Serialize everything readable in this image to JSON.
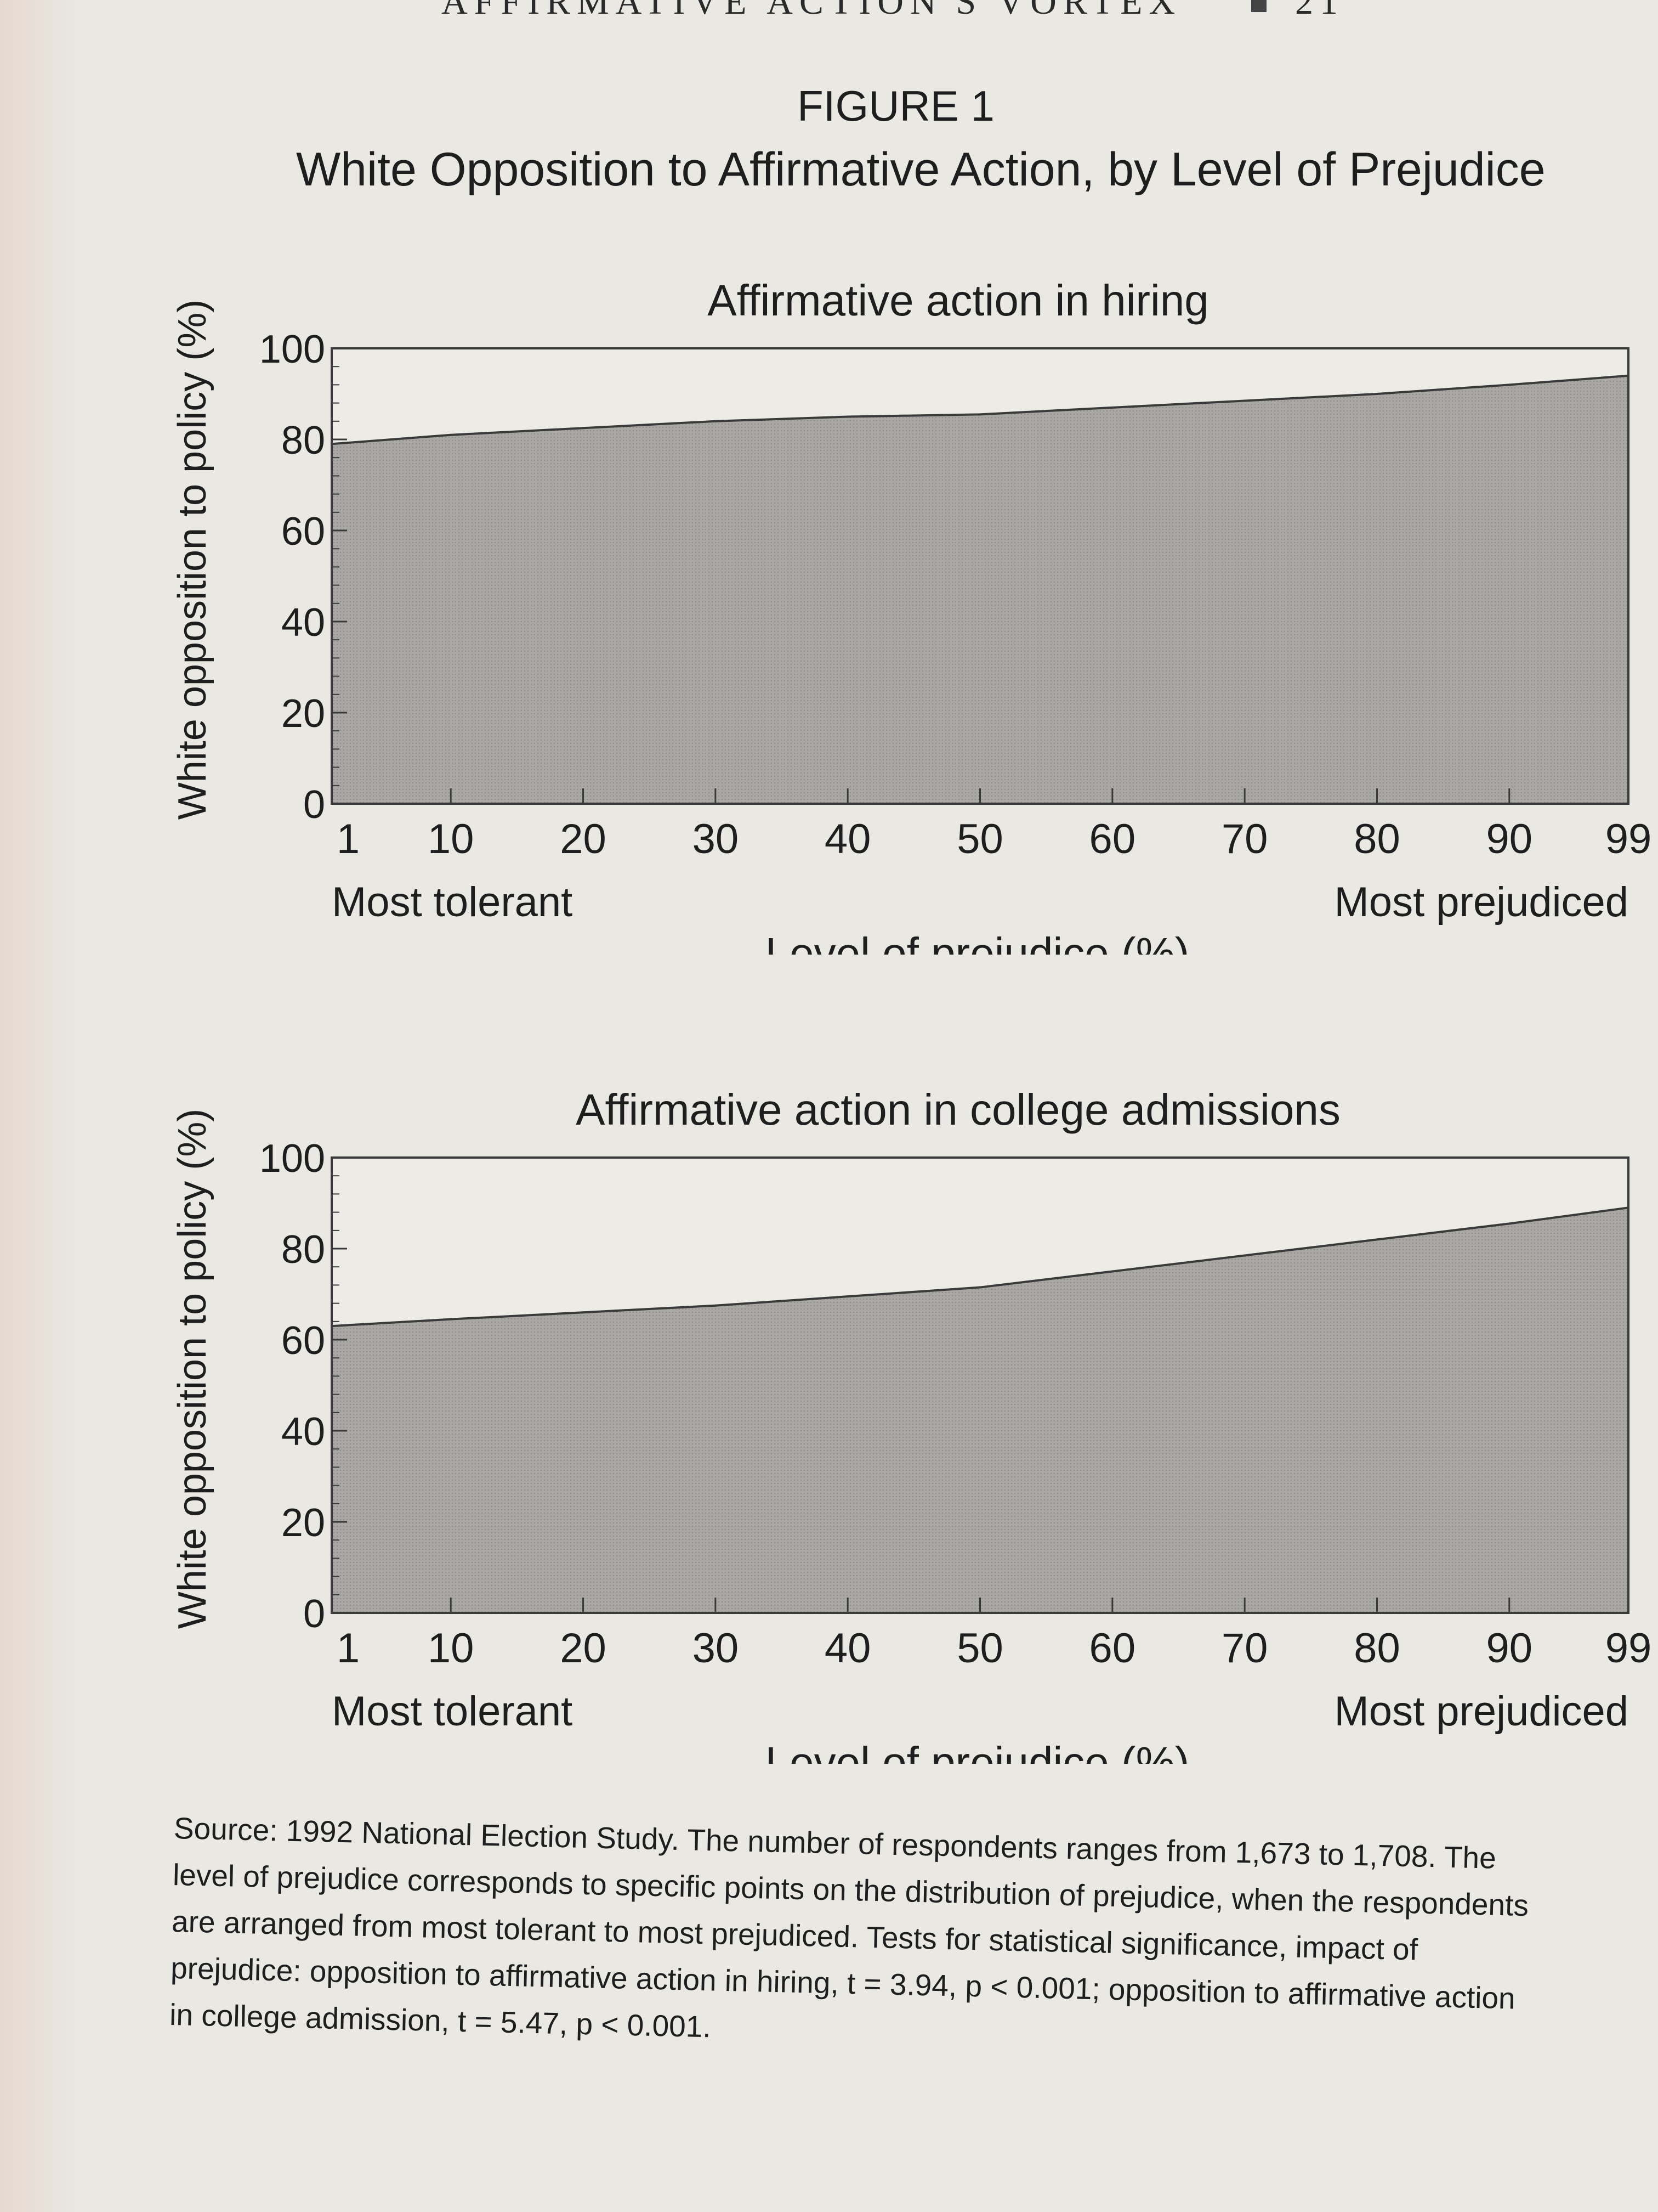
{
  "page_header": {
    "running_title": "AFFIRMATIVE ACTION'S VORTEX",
    "page_number": "21"
  },
  "figure": {
    "label": "FIGURE 1",
    "title": "White Opposition to Affirmative Action, by Level of Prejudice"
  },
  "chart_data": [
    {
      "type": "area",
      "title": "Affirmative action in hiring",
      "xlabel": "Level of prejudice (%)",
      "ylabel": "White opposition to policy (%)",
      "x_left_label": "Most tolerant",
      "x_right_label": "Most prejudiced",
      "x_ticks": [
        1,
        10,
        20,
        30,
        40,
        50,
        60,
        70,
        80,
        90,
        99
      ],
      "y_ticks": [
        0,
        20,
        40,
        60,
        80,
        100
      ],
      "xlim": [
        1,
        99
      ],
      "ylim": [
        0,
        100
      ],
      "x": [
        1,
        10,
        20,
        30,
        40,
        50,
        60,
        70,
        80,
        90,
        99
      ],
      "values": [
        79,
        81,
        82.5,
        84,
        85,
        85.5,
        87,
        88.5,
        90,
        92,
        94
      ]
    },
    {
      "type": "area",
      "title": "Affirmative action in college admissions",
      "xlabel": "Level of prejudice (%)",
      "ylabel": "White opposition to policy (%)",
      "x_left_label": "Most tolerant",
      "x_right_label": "Most prejudiced",
      "x_ticks": [
        1,
        10,
        20,
        30,
        40,
        50,
        60,
        70,
        80,
        90,
        99
      ],
      "y_ticks": [
        0,
        20,
        40,
        60,
        80,
        100
      ],
      "xlim": [
        1,
        99
      ],
      "ylim": [
        0,
        100
      ],
      "x": [
        1,
        10,
        20,
        30,
        40,
        50,
        60,
        70,
        80,
        90,
        99
      ],
      "values": [
        63,
        64.5,
        66,
        67.5,
        69.5,
        71.5,
        75,
        78.5,
        82,
        85.5,
        89
      ]
    }
  ],
  "caption_lines": [
    "Source: 1992 National Election Study. The number of respondents ranges from 1,673 to 1,708. The",
    "level of prejudice corresponds to specific points on the distribution of prejudice, when the respondents",
    "are arranged from most tolerant to most prejudiced. Tests for statistical significance, impact of",
    "prejudice: opposition to affirmative action in hiring, t = 3.94, p < 0.001; opposition to affirmative action",
    "in college admission, t = 5.47, p < 0.001."
  ],
  "colors": {
    "fill": "#a9a8a5",
    "line": "#3a3a3a",
    "plot_bg": "#ecebe6"
  }
}
